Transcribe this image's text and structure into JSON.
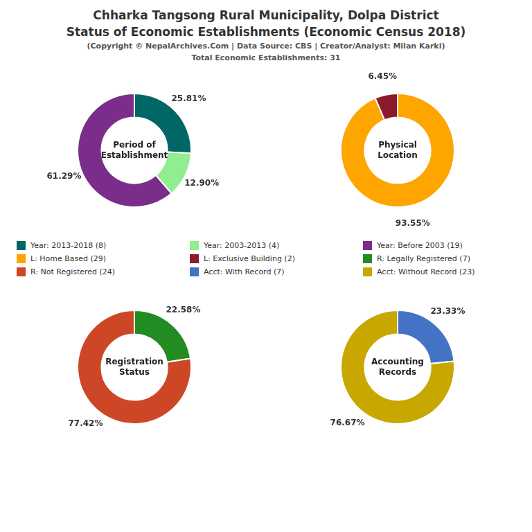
{
  "title": [
    "Chharka Tangsong Rural Municipality, Dolpa District",
    "Status of Economic Establishments (Economic Census 2018)"
  ],
  "subtitle": [
    "(Copyright © NepalArchives.Com | Data Source: CBS | Creator/Analyst: Milan Karki)",
    "Total Economic Establishments: 31"
  ],
  "chart_data": [
    {
      "type": "pie",
      "title": "Period of\nEstablishment",
      "categories": [
        "Year: 2013-2018 (8)",
        "Year: 2003-2013 (4)",
        "Year: Before 2003 (19)"
      ],
      "values": [
        25.81,
        12.9,
        61.29
      ],
      "value_labels": [
        "25.81%",
        "12.90%",
        "61.29%"
      ],
      "colors": [
        "#006666",
        "#90EE90",
        "#7B2D8B"
      ],
      "data_labels": true
    },
    {
      "type": "pie",
      "title": "Physical\nLocation",
      "categories": [
        "L: Home Based (29)",
        "L: Exclusive Building (2)"
      ],
      "values": [
        93.55,
        6.45
      ],
      "value_labels": [
        "93.55%",
        "6.45%"
      ],
      "colors": [
        "#FFA500",
        "#8B1A2A"
      ],
      "data_labels": true
    },
    {
      "type": "pie",
      "title": "Registration\nStatus",
      "categories": [
        "R: Legally Registered (7)",
        "R: Not Registered (24)"
      ],
      "values": [
        22.58,
        77.42
      ],
      "value_labels": [
        "22.58%",
        "77.42%"
      ],
      "colors": [
        "#228B22",
        "#CD4726"
      ],
      "data_labels": true
    },
    {
      "type": "pie",
      "title": "Accounting\nRecords",
      "categories": [
        "Acct: With Record (7)",
        "Acct: Without Record (23)"
      ],
      "values": [
        23.33,
        76.67
      ],
      "value_labels": [
        "23.33%",
        "76.67%"
      ],
      "colors": [
        "#4472C4",
        "#C8A800"
      ],
      "data_labels": true
    }
  ]
}
